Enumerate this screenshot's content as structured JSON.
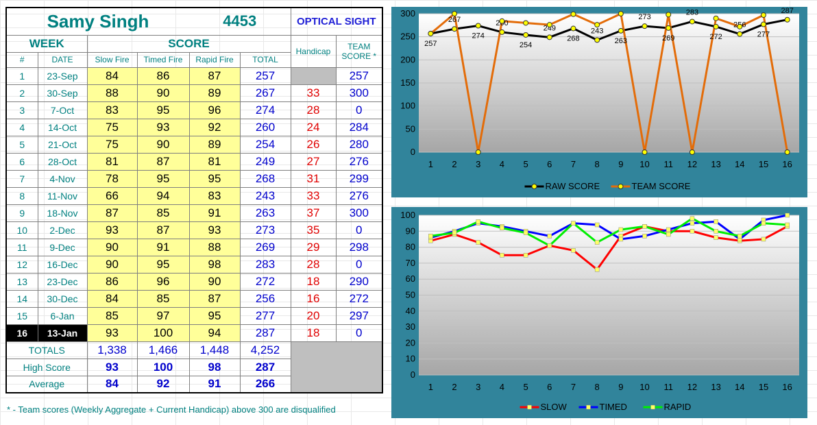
{
  "header": {
    "name": "Samy Singh",
    "id": "4453",
    "sight": "OPTICAL SIGHT"
  },
  "columns": {
    "week": "WEEK",
    "score": "SCORE",
    "handicap": "Handicap",
    "team_line1": "TEAM",
    "team_line2": "SCORE *",
    "num": "#",
    "date": "DATE",
    "slow": "Slow Fire",
    "timed": "Timed Fire",
    "rapid": "Rapid Fire",
    "total": "TOTAL"
  },
  "rows": [
    {
      "n": "1",
      "date": "23-Sep",
      "slow": "84",
      "timed": "86",
      "rapid": "87",
      "total": "257",
      "hcp": "",
      "team": "257"
    },
    {
      "n": "2",
      "date": "30-Sep",
      "slow": "88",
      "timed": "90",
      "rapid": "89",
      "total": "267",
      "hcp": "33",
      "team": "300"
    },
    {
      "n": "3",
      "date": "7-Oct",
      "slow": "83",
      "timed": "95",
      "rapid": "96",
      "total": "274",
      "hcp": "28",
      "team": "0"
    },
    {
      "n": "4",
      "date": "14-Oct",
      "slow": "75",
      "timed": "93",
      "rapid": "92",
      "total": "260",
      "hcp": "24",
      "team": "284"
    },
    {
      "n": "5",
      "date": "21-Oct",
      "slow": "75",
      "timed": "90",
      "rapid": "89",
      "total": "254",
      "hcp": "26",
      "team": "280"
    },
    {
      "n": "6",
      "date": "28-Oct",
      "slow": "81",
      "timed": "87",
      "rapid": "81",
      "total": "249",
      "hcp": "27",
      "team": "276"
    },
    {
      "n": "7",
      "date": "4-Nov",
      "slow": "78",
      "timed": "95",
      "rapid": "95",
      "total": "268",
      "hcp": "31",
      "team": "299"
    },
    {
      "n": "8",
      "date": "11-Nov",
      "slow": "66",
      "timed": "94",
      "rapid": "83",
      "total": "243",
      "hcp": "33",
      "team": "276"
    },
    {
      "n": "9",
      "date": "18-Nov",
      "slow": "87",
      "timed": "85",
      "rapid": "91",
      "total": "263",
      "hcp": "37",
      "team": "300"
    },
    {
      "n": "10",
      "date": "2-Dec",
      "slow": "93",
      "timed": "87",
      "rapid": "93",
      "total": "273",
      "hcp": "35",
      "team": "0"
    },
    {
      "n": "11",
      "date": "9-Dec",
      "slow": "90",
      "timed": "91",
      "rapid": "88",
      "total": "269",
      "hcp": "29",
      "team": "298"
    },
    {
      "n": "12",
      "date": "16-Dec",
      "slow": "90",
      "timed": "95",
      "rapid": "98",
      "total": "283",
      "hcp": "28",
      "team": "0"
    },
    {
      "n": "13",
      "date": "23-Dec",
      "slow": "86",
      "timed": "96",
      "rapid": "90",
      "total": "272",
      "hcp": "18",
      "team": "290"
    },
    {
      "n": "14",
      "date": "30-Dec",
      "slow": "84",
      "timed": "85",
      "rapid": "87",
      "total": "256",
      "hcp": "16",
      "team": "272"
    },
    {
      "n": "15",
      "date": "6-Jan",
      "slow": "85",
      "timed": "97",
      "rapid": "95",
      "total": "277",
      "hcp": "20",
      "team": "297"
    },
    {
      "n": "16",
      "date": "13-Jan",
      "slow": "93",
      "timed": "100",
      "rapid": "94",
      "total": "287",
      "hcp": "18",
      "team": "0"
    }
  ],
  "summary": {
    "totals_label": "TOTALS",
    "totals": [
      "1,338",
      "1,466",
      "1,448",
      "4,252"
    ],
    "high_label": "High Score",
    "high": [
      "93",
      "100",
      "98",
      "287"
    ],
    "avg_label": "Average",
    "avg": [
      "84",
      "92",
      "91",
      "266"
    ]
  },
  "footnote": "* - Team scores (Weekly Aggregate + Current Handicap) above 300 are disqualified",
  "chart_data": [
    {
      "type": "line",
      "x": [
        1,
        2,
        3,
        4,
        5,
        6,
        7,
        8,
        9,
        10,
        11,
        12,
        13,
        14,
        15,
        16
      ],
      "ylim": [
        0,
        300
      ],
      "yticks": [
        0,
        50,
        100,
        150,
        200,
        250,
        300
      ],
      "series": [
        {
          "name": "RAW SCORE",
          "color": "#000000",
          "values": [
            257,
            267,
            274,
            260,
            254,
            249,
            268,
            243,
            263,
            273,
            269,
            283,
            272,
            256,
            277,
            287
          ],
          "labels": true
        },
        {
          "name": "TEAM SCORE",
          "color": "#e36c09",
          "values": [
            257,
            300,
            0,
            284,
            280,
            276,
            299,
            276,
            300,
            0,
            298,
            0,
            290,
            272,
            297,
            0
          ],
          "labels": false
        }
      ]
    },
    {
      "type": "line",
      "x": [
        1,
        2,
        3,
        4,
        5,
        6,
        7,
        8,
        9,
        10,
        11,
        12,
        13,
        14,
        15,
        16
      ],
      "ylim": [
        0,
        100
      ],
      "yticks": [
        0,
        10,
        20,
        30,
        40,
        50,
        60,
        70,
        80,
        90,
        100
      ],
      "series": [
        {
          "name": "SLOW",
          "color": "#ff0000",
          "values": [
            84,
            88,
            83,
            75,
            75,
            81,
            78,
            66,
            87,
            93,
            90,
            90,
            86,
            84,
            85,
            93
          ]
        },
        {
          "name": "TIMED",
          "color": "#0000ff",
          "values": [
            86,
            90,
            95,
            93,
            90,
            87,
            95,
            94,
            85,
            87,
            91,
            95,
            96,
            85,
            97,
            100
          ]
        },
        {
          "name": "RAPID",
          "color": "#00ee00",
          "values": [
            87,
            89,
            96,
            92,
            89,
            81,
            95,
            83,
            91,
            93,
            88,
            98,
            90,
            87,
            95,
            94
          ]
        }
      ]
    }
  ]
}
